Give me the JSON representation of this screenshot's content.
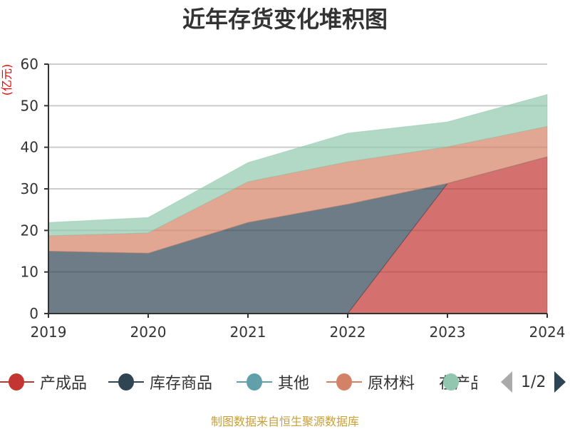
{
  "chart_data": {
    "type": "area",
    "stacked": true,
    "title": "近年存货变化堆积图",
    "ylabel": "(亿元)",
    "xlabel": "",
    "categories": [
      "2019",
      "2020",
      "2021",
      "2022",
      "2023",
      "2024"
    ],
    "ylim": [
      0,
      60
    ],
    "yticks": [
      0,
      10,
      20,
      30,
      40,
      50,
      60
    ],
    "grid": true,
    "legend_position": "bottom",
    "series": [
      {
        "name": "产成品",
        "color": "#c23531",
        "values": [
          null,
          null,
          null,
          0,
          31.3,
          37.7
        ]
      },
      {
        "name": "库存商品",
        "color": "#2f4554",
        "values": [
          15.0,
          14.5,
          21.9,
          26.3,
          0,
          0
        ]
      },
      {
        "name": "其他",
        "color": "#61a0a8",
        "values": [
          0,
          0,
          0,
          0,
          0,
          0
        ]
      },
      {
        "name": "原材料",
        "color": "#d48265",
        "values": [
          3.7,
          4.9,
          9.8,
          10.2,
          8.8,
          7.3
        ]
      },
      {
        "name": "在产品",
        "color": "#91c7ae",
        "values": [
          3.2,
          3.7,
          4.6,
          6.9,
          6.0,
          7.7
        ]
      }
    ]
  },
  "legend": {
    "page": "1/2"
  },
  "footer": "制图数据来自恒生聚源数据库"
}
